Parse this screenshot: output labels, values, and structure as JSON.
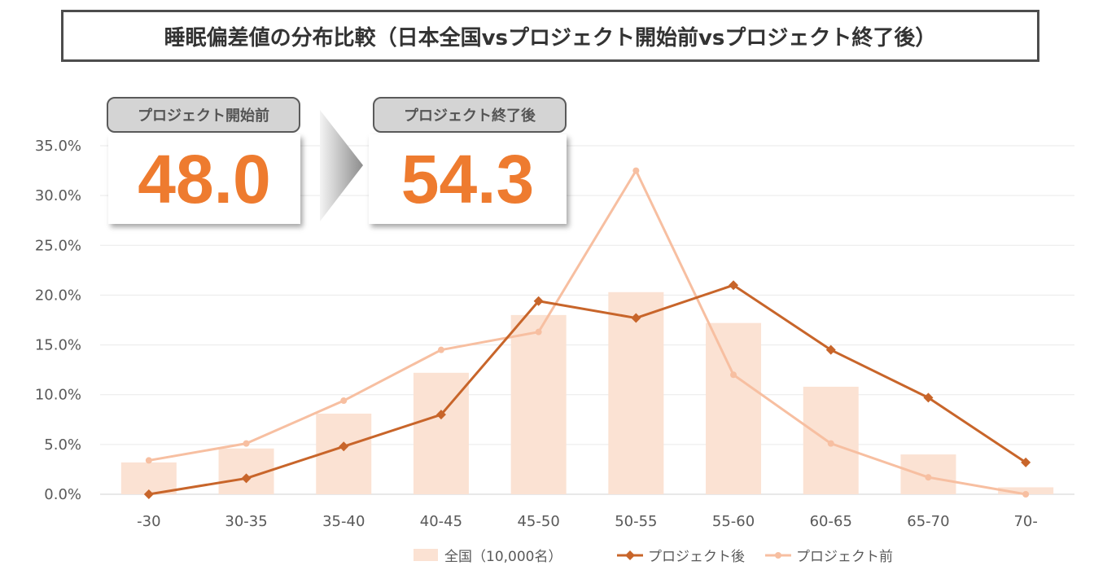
{
  "colors": {
    "national_bar": "#fbe2d3",
    "after_line": "#c8652a",
    "before_line": "#f7bfa1",
    "score_text": "#ee7b2f"
  },
  "score_cards": {
    "before_label": "プロジェクト開始前",
    "before_value": "48.0",
    "after_label": "プロジェクト終了後",
    "after_value": "54.3"
  },
  "chart_data": {
    "type": "bar",
    "title": "睡眠偏差値の分布比較（日本全国vsプロジェクト開始前vsプロジェクト終了後）",
    "categories": [
      "-30",
      "30-35",
      "35-40",
      "40-45",
      "45-50",
      "50-55",
      "55-60",
      "60-65",
      "65-70",
      "70-"
    ],
    "ylim": [
      0,
      35
    ],
    "yticks": [
      "0.0%",
      "5.0%",
      "10.0%",
      "15.0%",
      "20.0%",
      "25.0%",
      "30.0%",
      "35.0%"
    ],
    "grid": true,
    "legend_position": "bottom",
    "series": [
      {
        "name": "全国（10,000名）",
        "type": "bar",
        "values": [
          3.2,
          4.6,
          8.1,
          12.2,
          18.0,
          20.3,
          17.2,
          10.8,
          4.0,
          0.7
        ]
      },
      {
        "name": "プロジェクト後",
        "type": "line",
        "marker": "diamond",
        "values": [
          0.0,
          1.6,
          4.8,
          8.0,
          19.4,
          17.7,
          21.0,
          14.5,
          9.7,
          3.2
        ]
      },
      {
        "name": "プロジェクト前",
        "type": "line",
        "marker": "circle",
        "values": [
          3.4,
          5.1,
          9.4,
          14.5,
          16.3,
          32.5,
          12.0,
          5.1,
          1.7,
          0.0
        ]
      }
    ]
  }
}
